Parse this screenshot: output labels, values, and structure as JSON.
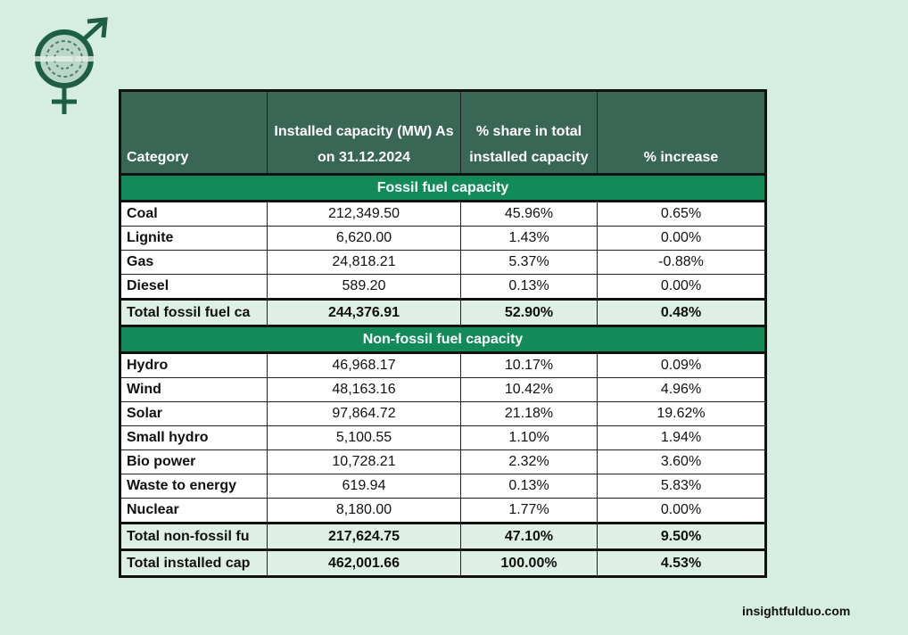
{
  "header": {
    "category": "Category",
    "capacity": "Installed capacity (MW) As on 31.12.2024",
    "share": "% share in total installed capacity",
    "increase": "% increase"
  },
  "sections": [
    {
      "title": "Fossil fuel capacity",
      "rows": [
        [
          "Coal",
          "212,349.50",
          "45.96%",
          "0.65%"
        ],
        [
          "Lignite",
          "6,620.00",
          "1.43%",
          "0.00%"
        ],
        [
          "Gas",
          "24,818.21",
          "5.37%",
          "-0.88%"
        ],
        [
          "Diesel",
          "589.20",
          "0.13%",
          "0.00%"
        ]
      ],
      "total": [
        "Total fossil fuel ca",
        "244,376.91",
        "52.90%",
        "0.48%"
      ]
    },
    {
      "title": "Non-fossil fuel capacity",
      "rows": [
        [
          "Hydro",
          "46,968.17",
          "10.17%",
          "0.09%"
        ],
        [
          "Wind",
          "48,163.16",
          "10.42%",
          "4.96%"
        ],
        [
          "Solar",
          "97,864.72",
          "21.18%",
          "19.62%"
        ],
        [
          "Small hydro",
          "5,100.55",
          "1.10%",
          "1.94%"
        ],
        [
          "Bio power",
          "10,728.21",
          "2.32%",
          "3.60%"
        ],
        [
          "Waste to energy",
          "619.94",
          "0.13%",
          "5.83%"
        ],
        [
          "Nuclear",
          "8,180.00",
          "1.77%",
          "0.00%"
        ]
      ],
      "total": [
        "Total non-fossil fu",
        "217,624.75",
        "47.10%",
        "9.50%"
      ]
    }
  ],
  "grand_total": [
    "Total installed cap",
    "462,001.66",
    "100.00%",
    "4.53%"
  ],
  "website": "insightfulduo.com",
  "colors": {
    "header": "#3a6656",
    "section": "#138a5a",
    "total": "#def0e6",
    "background": "#d6eee2"
  }
}
